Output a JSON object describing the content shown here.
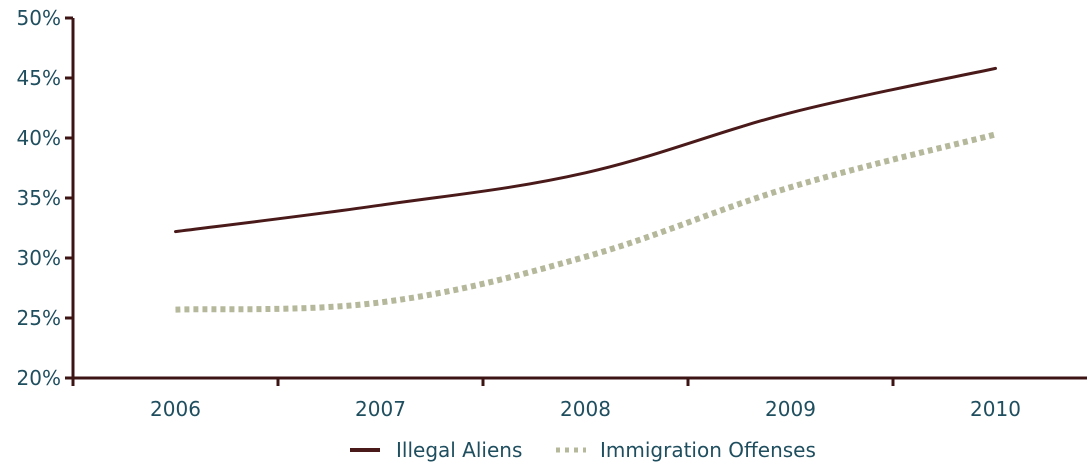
{
  "chart_data": {
    "type": "line",
    "categories": [
      "2006",
      "2007",
      "2008",
      "2009",
      "2010"
    ],
    "ylim": [
      20,
      50
    ],
    "yticks": [
      20,
      25,
      30,
      35,
      40,
      45,
      50
    ],
    "ytick_labels": [
      "20%",
      "25%",
      "30%",
      "35%",
      "40%",
      "45%",
      "50%"
    ],
    "grid": false,
    "legend_position": "bottom",
    "series": [
      {
        "name": "Illegal Aliens",
        "values": [
          32.2,
          34.4,
          37.1,
          42.1,
          45.8
        ],
        "color": "#4a1a1a",
        "style": "solid"
      },
      {
        "name": "Immigration Offenses",
        "values": [
          25.7,
          26.3,
          30.1,
          35.9,
          40.3
        ],
        "color": "#b5b89a",
        "style": "dotted"
      }
    ]
  }
}
